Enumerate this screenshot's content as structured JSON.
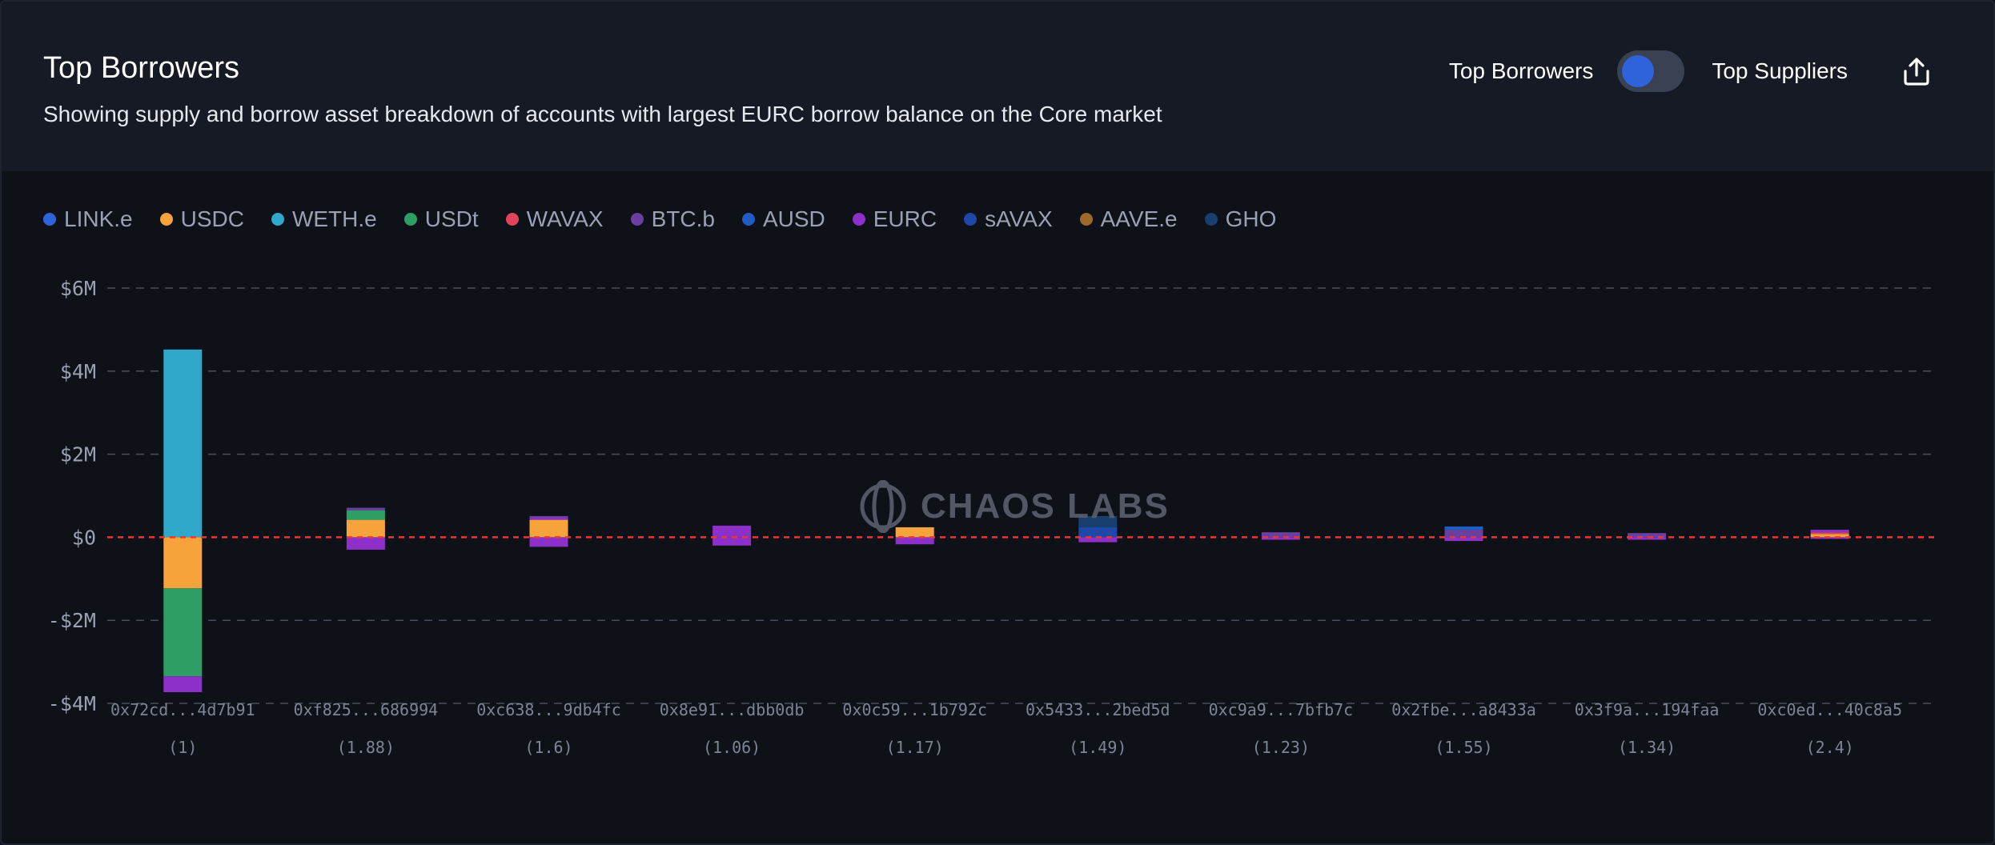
{
  "header": {
    "title": "Top Borrowers",
    "subtitle": "Showing supply and borrow asset breakdown of accounts with largest EURC borrow balance on the Core market",
    "toggle": {
      "left_label": "Top Borrowers",
      "right_label": "Top Suppliers",
      "state": "Top Borrowers"
    },
    "export_icon": "share-upload-icon"
  },
  "watermark": {
    "text": "CHAOS LABS",
    "icon": "chaos-labs-logo-icon"
  },
  "colors": {
    "LINK.e": "#2f63dc",
    "USDC": "#f7a33b",
    "WETH.e": "#2fa8c9",
    "USDt": "#2e9e64",
    "WAVAX": "#e0435a",
    "BTC.b": "#6b3fa0",
    "AUSD": "#1f5cc4",
    "EURC": "#8d2fc9",
    "sAVAX": "#1f47a8",
    "AAVE.e": "#9e6a2a",
    "GHO": "#17406e",
    "zero_line": "#e53935",
    "grid": "#4a4f5c"
  },
  "chart_data": {
    "type": "bar",
    "stacked": true,
    "legend": [
      "LINK.e",
      "USDC",
      "WETH.e",
      "USDt",
      "WAVAX",
      "BTC.b",
      "AUSD",
      "EURC",
      "sAVAX",
      "AAVE.e",
      "GHO"
    ],
    "legend_placement": "top-left",
    "grid": true,
    "ylim": [
      -4000000,
      6000000
    ],
    "yticks": [
      {
        "value": 6000000,
        "label": "$6M"
      },
      {
        "value": 4000000,
        "label": "$4M"
      },
      {
        "value": 2000000,
        "label": "$2M"
      },
      {
        "value": 0,
        "label": "$0"
      },
      {
        "value": -2000000,
        "label": "-$2M"
      },
      {
        "value": -4000000,
        "label": "-$4M"
      }
    ],
    "categories": [
      {
        "address": "0x72cd...4d7b91",
        "health": "(1)"
      },
      {
        "address": "0xf825...686994",
        "health": "(1.88)"
      },
      {
        "address": "0xc638...9db4fc",
        "health": "(1.6)"
      },
      {
        "address": "0x8e91...dbb0db",
        "health": "(1.06)"
      },
      {
        "address": "0x0c59...1b792c",
        "health": "(1.17)"
      },
      {
        "address": "0x5433...2bed5d",
        "health": "(1.49)"
      },
      {
        "address": "0xc9a9...7bfb7c",
        "health": "(1.23)"
      },
      {
        "address": "0x2fbe...a8433a",
        "health": "(1.55)"
      },
      {
        "address": "0x3f9a...194faa",
        "health": "(1.34)"
      },
      {
        "address": "0xc0ed...40c8a5",
        "health": "(2.4)"
      }
    ],
    "supply": [
      [
        {
          "asset": "WETH.e",
          "value": 4520000
        }
      ],
      [
        {
          "asset": "USDC",
          "value": 420000
        },
        {
          "asset": "USDt",
          "value": 230000
        },
        {
          "asset": "BTC.b",
          "value": 60000
        }
      ],
      [
        {
          "asset": "USDC",
          "value": 420000
        },
        {
          "asset": "EURC",
          "value": 50000
        },
        {
          "asset": "BTC.b",
          "value": 40000
        }
      ],
      [
        {
          "asset": "EURC",
          "value": 280000
        }
      ],
      [
        {
          "asset": "USDC",
          "value": 240000
        }
      ],
      [
        {
          "asset": "sAVAX",
          "value": 240000
        },
        {
          "asset": "GHO",
          "value": 270000
        }
      ],
      [
        {
          "asset": "BTC.b",
          "value": 120000
        }
      ],
      [
        {
          "asset": "BTC.b",
          "value": 180000
        },
        {
          "asset": "AUSD",
          "value": 80000
        }
      ],
      [
        {
          "asset": "BTC.b",
          "value": 100000
        }
      ],
      [
        {
          "asset": "USDC",
          "value": 80000
        },
        {
          "asset": "WAVAX",
          "value": 40000
        },
        {
          "asset": "EURC",
          "value": 60000
        }
      ]
    ],
    "borrow": [
      [
        {
          "asset": "USDC",
          "value": -1230000
        },
        {
          "asset": "USDt",
          "value": -2120000
        },
        {
          "asset": "EURC",
          "value": -380000
        }
      ],
      [
        {
          "asset": "EURC",
          "value": -300000
        }
      ],
      [
        {
          "asset": "EURC",
          "value": -230000
        }
      ],
      [
        {
          "asset": "EURC",
          "value": -200000
        }
      ],
      [
        {
          "asset": "EURC",
          "value": -170000
        }
      ],
      [
        {
          "asset": "EURC",
          "value": -120000
        }
      ],
      [
        {
          "asset": "EURC",
          "value": -60000
        }
      ],
      [
        {
          "asset": "EURC",
          "value": -90000
        }
      ],
      [
        {
          "asset": "EURC",
          "value": -60000
        }
      ],
      [
        {
          "asset": "EURC",
          "value": -40000
        }
      ]
    ]
  }
}
